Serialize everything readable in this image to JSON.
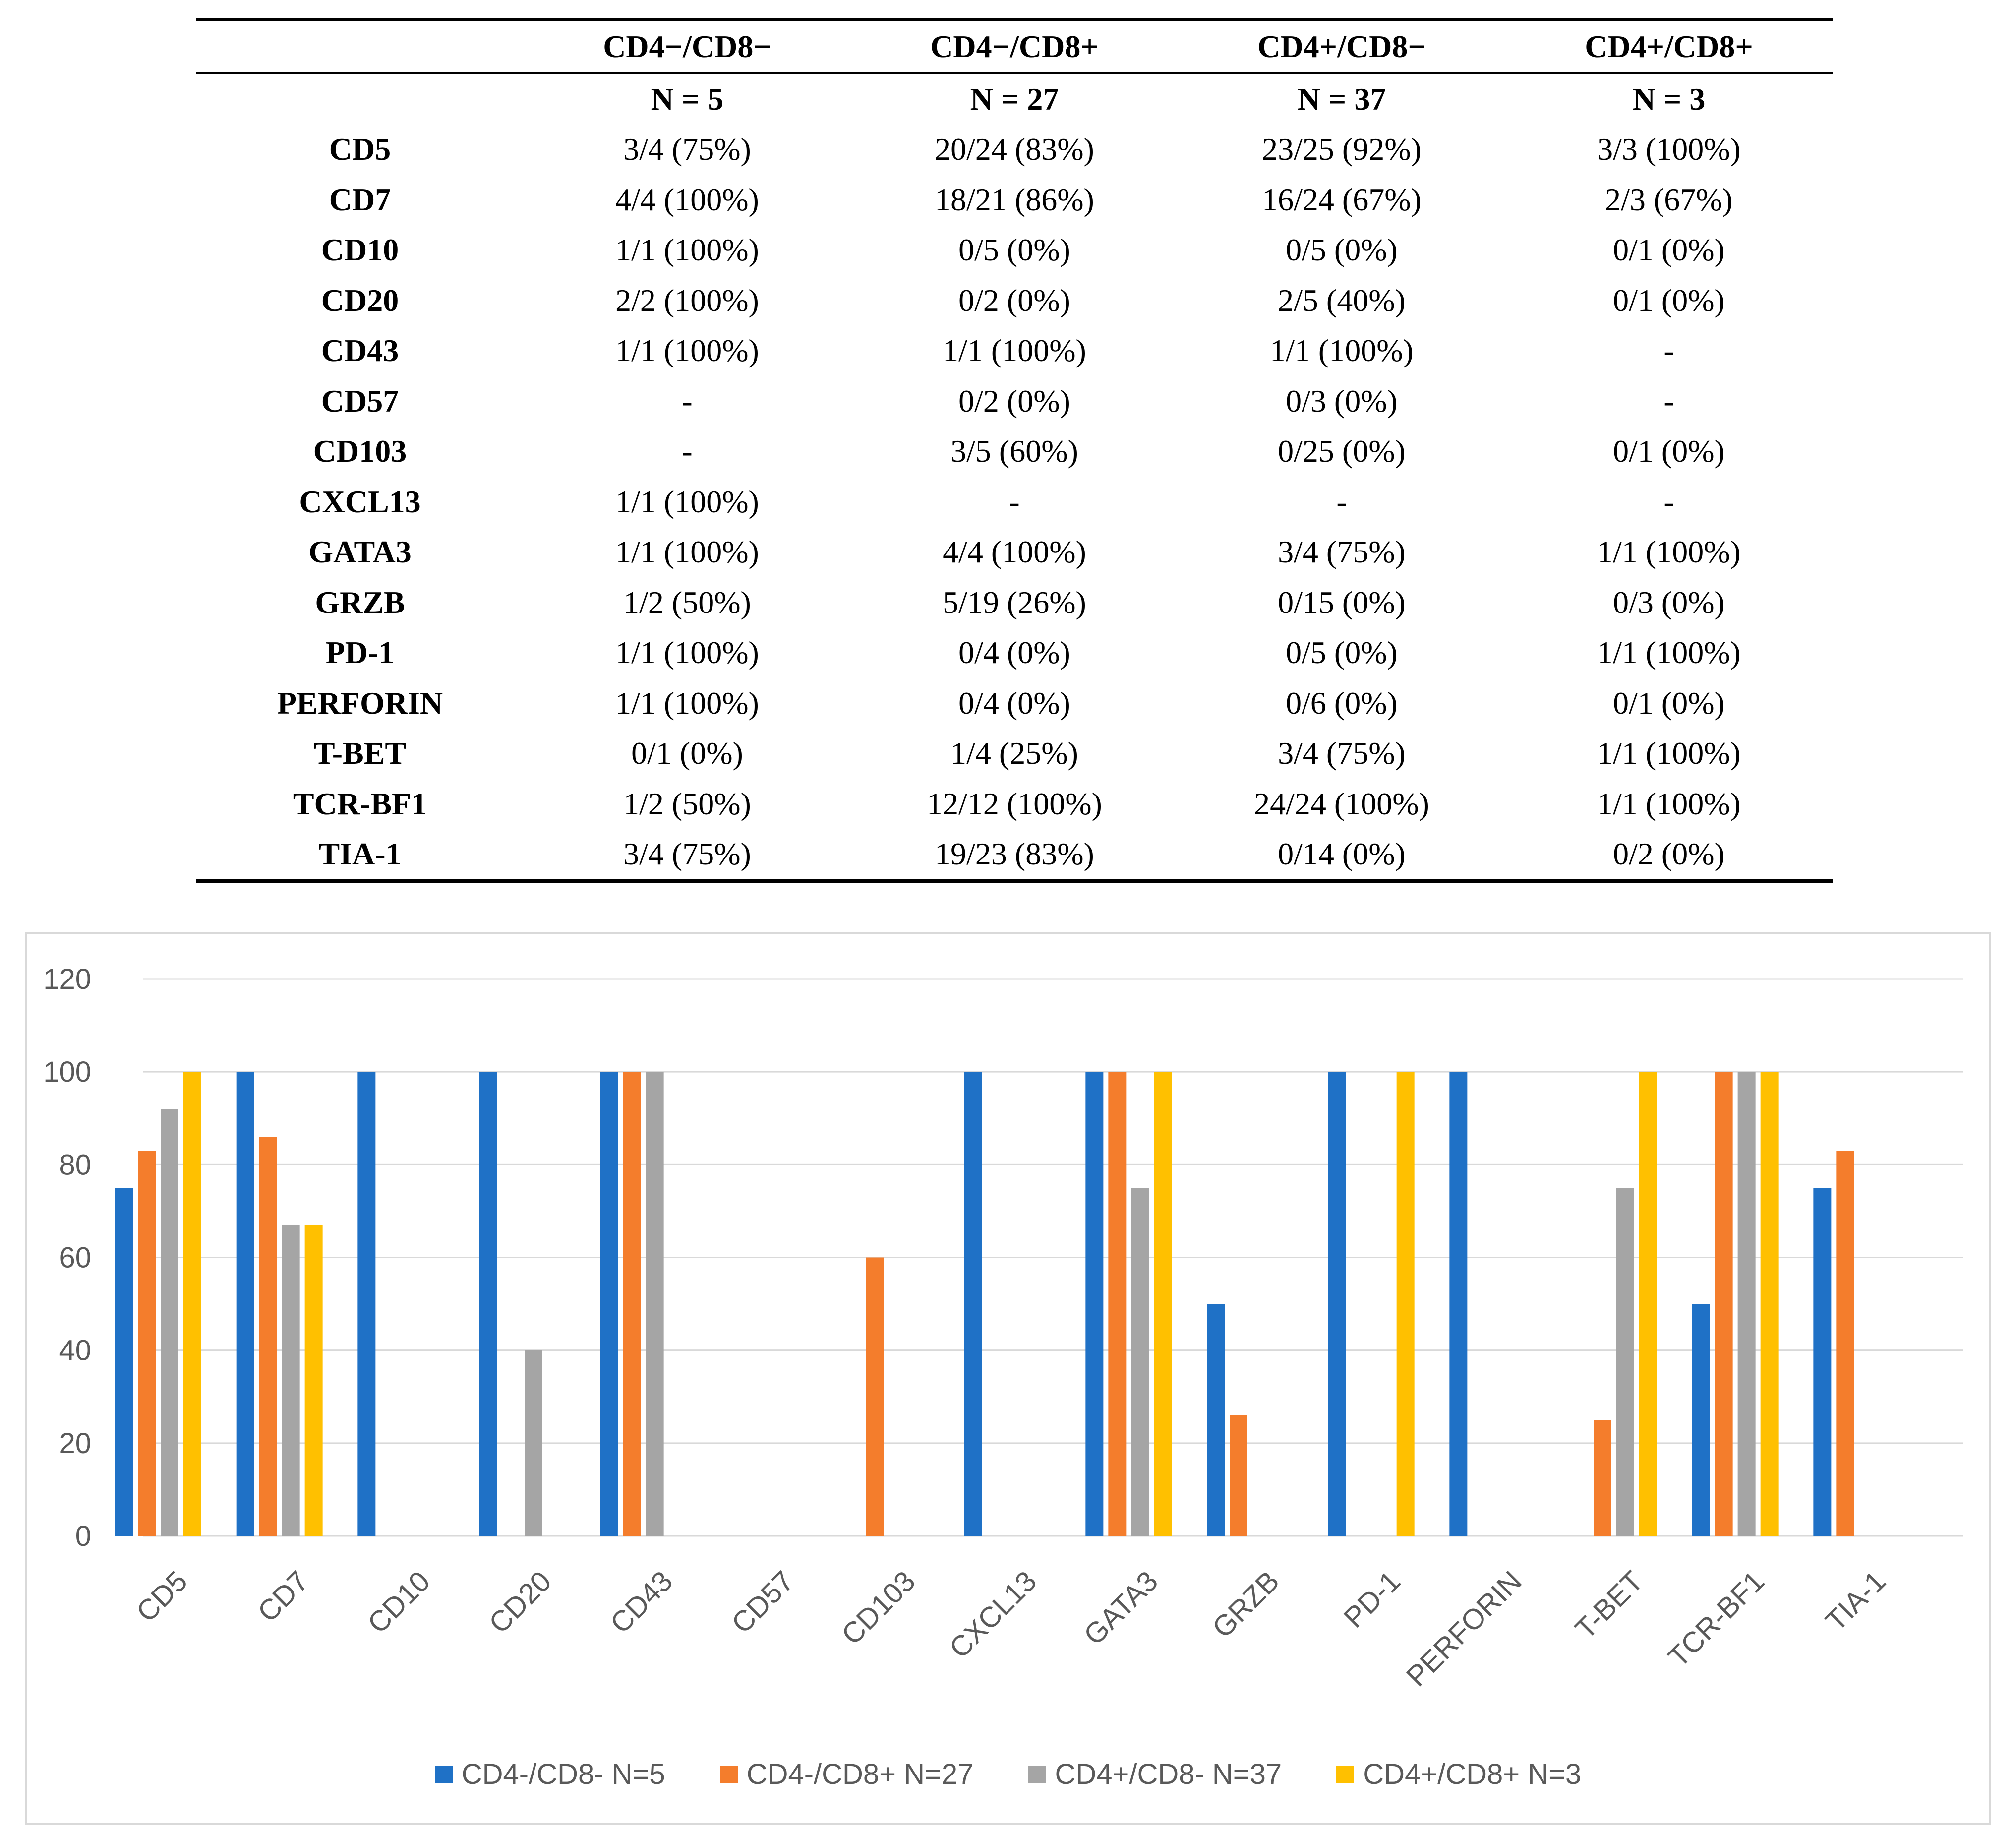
{
  "table": {
    "header": [
      "",
      "CD4−/CD8−",
      "CD4−/CD8+",
      "CD4+/CD8−",
      "CD4+/CD8+"
    ],
    "counts": [
      "",
      "N = 5",
      "N = 27",
      "N = 37",
      "N = 3"
    ],
    "rows": [
      [
        "CD5",
        "3/4 (75%)",
        "20/24 (83%)",
        "23/25 (92%)",
        "3/3 (100%)"
      ],
      [
        "CD7",
        "4/4 (100%)",
        "18/21 (86%)",
        "16/24 (67%)",
        "2/3 (67%)"
      ],
      [
        "CD10",
        "1/1 (100%)",
        "0/5 (0%)",
        "0/5 (0%)",
        "0/1 (0%)"
      ],
      [
        "CD20",
        "2/2 (100%)",
        "0/2 (0%)",
        "2/5 (40%)",
        "0/1 (0%)"
      ],
      [
        "CD43",
        "1/1 (100%)",
        "1/1 (100%)",
        "1/1 (100%)",
        "-"
      ],
      [
        "CD57",
        "-",
        "0/2 (0%)",
        "0/3 (0%)",
        "-"
      ],
      [
        "CD103",
        "-",
        "3/5 (60%)",
        "0/25 (0%)",
        "0/1 (0%)"
      ],
      [
        "CXCL13",
        "1/1 (100%)",
        "-",
        "-",
        "-"
      ],
      [
        "GATA3",
        "1/1 (100%)",
        "4/4 (100%)",
        "3/4 (75%)",
        "1/1 (100%)"
      ],
      [
        "GRZB",
        "1/2 (50%)",
        "5/19 (26%)",
        "0/15 (0%)",
        "0/3 (0%)"
      ],
      [
        "PD-1",
        "1/1 (100%)",
        "0/4 (0%)",
        "0/5 (0%)",
        "1/1 (100%)"
      ],
      [
        "PERFORIN",
        "1/1 (100%)",
        "0/4 (0%)",
        "0/6 (0%)",
        "0/1 (0%)"
      ],
      [
        "T-BET",
        "0/1 (0%)",
        "1/4 (25%)",
        "3/4 (75%)",
        "1/1 (100%)"
      ],
      [
        "TCR-BF1",
        "1/2 (50%)",
        "12/12 (100%)",
        "24/24 (100%)",
        "1/1 (100%)"
      ],
      [
        "TIA-1",
        "3/4 (75%)",
        "19/23 (83%)",
        "0/14 (0%)",
        "0/2 (0%)"
      ]
    ]
  },
  "chart_data": {
    "type": "bar",
    "title": "",
    "xlabel": "",
    "ylabel": "",
    "ylim": [
      0,
      120
    ],
    "yticks": [
      0,
      20,
      40,
      60,
      80,
      100,
      120
    ],
    "grid": true,
    "legend_position": "bottom",
    "categories": [
      "CD5",
      "CD7",
      "CD10",
      "CD20",
      "CD43",
      "CD57",
      "CD103",
      "CXCL13",
      "GATA3",
      "GRZB",
      "PD-1",
      "PERFORIN",
      "T-BET",
      "TCR-BF1",
      "TIA-1"
    ],
    "series": [
      {
        "name": "CD4-/CD8- N=5",
        "color": "#1f71c6",
        "values": [
          75,
          100,
          100,
          100,
          100,
          null,
          null,
          100,
          100,
          50,
          100,
          100,
          0,
          50,
          75
        ]
      },
      {
        "name": "CD4-/CD8+ N=27",
        "color": "#f47d2c",
        "values": [
          83,
          86,
          0,
          0,
          100,
          0,
          60,
          null,
          100,
          26,
          0,
          0,
          25,
          100,
          83
        ]
      },
      {
        "name": "CD4+/CD8- N=37",
        "color": "#a5a5a5",
        "values": [
          92,
          67,
          0,
          40,
          100,
          0,
          0,
          null,
          75,
          0,
          0,
          0,
          75,
          100,
          0
        ]
      },
      {
        "name": "CD4+/CD8+ N=3",
        "color": "#ffc000",
        "values": [
          100,
          67,
          0,
          0,
          null,
          null,
          0,
          null,
          100,
          0,
          100,
          0,
          100,
          100,
          0
        ]
      }
    ]
  }
}
